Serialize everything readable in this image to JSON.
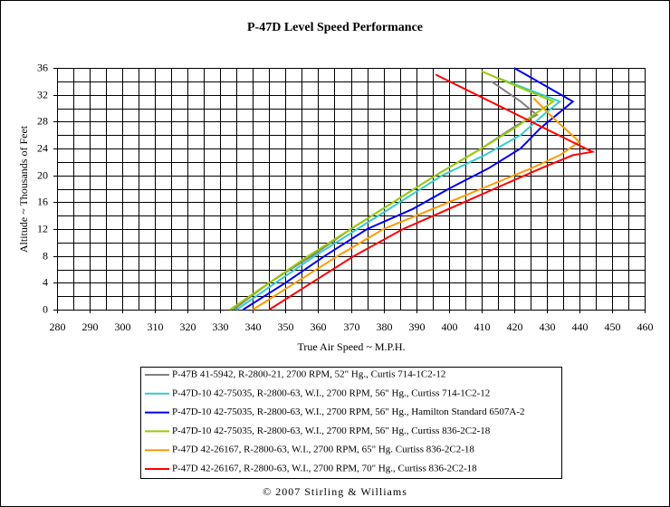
{
  "chart_data": {
    "type": "line",
    "title": "P-47D Level Speed Performance",
    "x_label": "True Air Speed ~ M.P.H.",
    "y_label": "Altitude ~ Thousands of Feet",
    "footer": "© 2007 Stirling & Williams",
    "xlim": [
      280,
      460
    ],
    "xticks": [
      280,
      290,
      300,
      310,
      320,
      330,
      340,
      350,
      360,
      370,
      380,
      390,
      400,
      410,
      420,
      430,
      440,
      450,
      460
    ],
    "ylim": [
      0,
      36
    ],
    "yticks": [
      0,
      4,
      8,
      12,
      16,
      20,
      24,
      28,
      32,
      36
    ],
    "grid": true,
    "minor_grid": true,
    "legend": "bottom",
    "series": [
      {
        "name": "P-47B 41-5942, R-2800-21, 2700 RPM, 52\" Hg., Curtis 714-1C2-12",
        "color": "#808080",
        "x": [
          334,
          345,
          358,
          370,
          383,
          396,
          410,
          421,
          427,
          422,
          413
        ],
        "values": [
          0,
          4,
          8,
          12,
          16,
          20,
          24,
          27.5,
          29,
          31,
          34
        ]
      },
      {
        "name": "P-47D-10 42-75035, R-2800-63, W.I., 2700 RPM, 56\" Hg., Curtiss 714-1C2-12",
        "color": "#33cccc",
        "x": [
          335,
          347,
          359,
          372,
          385,
          398,
          411,
          422,
          429,
          434,
          415
        ],
        "values": [
          0,
          4,
          8,
          12,
          16,
          20,
          23,
          26,
          29,
          31,
          34.5
        ]
      },
      {
        "name": "P-47D-10 42-75035, R-2800-63, W.I., 2700 RPM, 56\" Hg., Hamilton Standard 6507A-2",
        "color": "#0000ee",
        "x": [
          337,
          350,
          362,
          375,
          389,
          400,
          412,
          422,
          428,
          438,
          420
        ],
        "values": [
          0,
          4,
          8,
          12,
          15,
          18,
          21,
          24,
          27,
          31,
          36
        ]
      },
      {
        "name": "P-47D-10 42-75035, R-2800-63, W.I., 2700 RPM, 56\" Hg., Curtiss 836-2C2-18",
        "color": "#99cc00",
        "x": [
          333,
          345,
          357,
          370,
          383,
          396,
          410,
          420,
          426,
          432,
          410
        ],
        "values": [
          0,
          4,
          8,
          12,
          16,
          20,
          24,
          27,
          29,
          31,
          35.5
        ]
      },
      {
        "name": "P-47D 42-26167, R-2800-63, W.I., 2700 RPM, 65\" Hg. Curtiss 836-2C2-18",
        "color": "#ff9900",
        "x": [
          340,
          353,
          366,
          380,
          395,
          410,
          425,
          434,
          440,
          431,
          426
        ],
        "values": [
          0,
          4,
          8,
          12,
          15,
          18,
          21,
          23,
          25,
          29,
          31.5
        ]
      },
      {
        "name": "P-47D 42-26167, R-2800-63, W.I., 2700 RPM, 70\" Hg., Curtiss 836-2C2-18",
        "color": "#ff0000",
        "x": [
          345,
          358,
          371,
          386,
          400,
          414,
          428,
          438,
          444,
          396
        ],
        "values": [
          0,
          4,
          8,
          12,
          15,
          18,
          21,
          23,
          23.5,
          35
        ]
      }
    ]
  }
}
